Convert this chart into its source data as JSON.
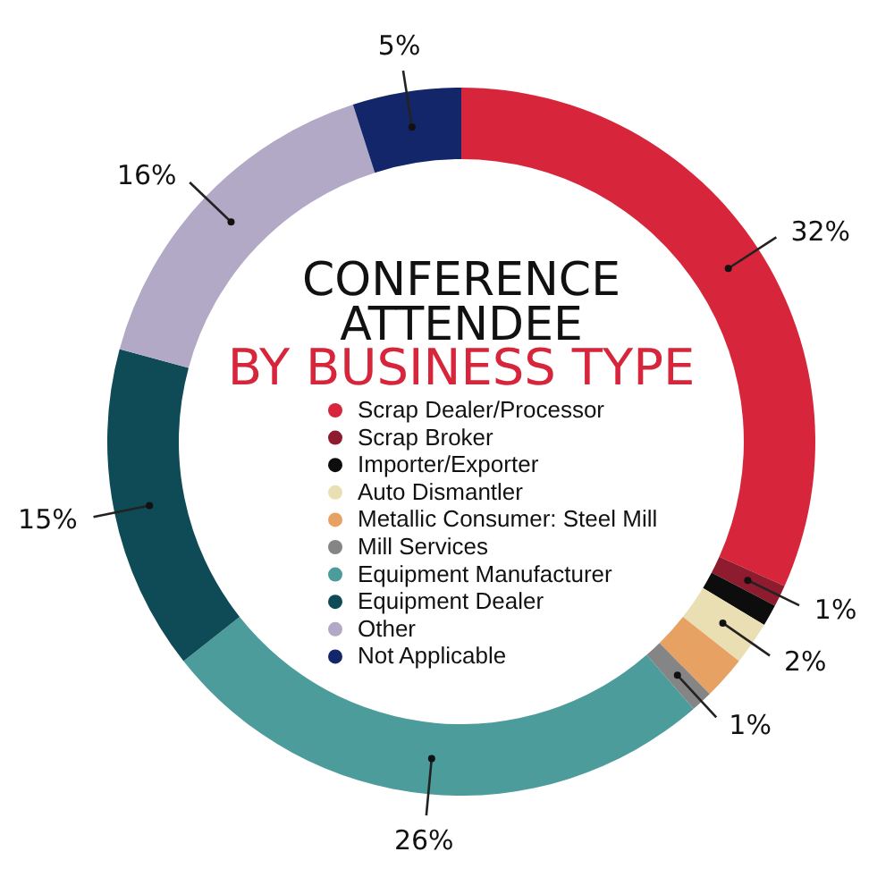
{
  "chart_data": {
    "type": "donut",
    "title": "CONFERENCE ATTENDEE",
    "subtitle": "BY BUSINESS TYPE",
    "categories": [
      "Scrap Dealer/Processor",
      "Scrap Broker",
      "Importer/Exporter",
      "Auto Dismantler",
      "Metallic Consumer: Steel Mill",
      "Mill Services",
      "Equipment Manufacturer",
      "Equipment Dealer",
      "Other",
      "Not Applicable"
    ],
    "values": [
      32,
      1,
      1,
      2,
      2,
      1,
      26,
      15,
      16,
      5
    ],
    "colors": [
      "#d7263b",
      "#8e1b2e",
      "#0d0d0d",
      "#e9dfb3",
      "#e7a263",
      "#858585",
      "#4b9c9b",
      "#0f4b57",
      "#b1a9c5",
      "#13266a"
    ],
    "value_labels": [
      "32%",
      "1%",
      null,
      "2%",
      null,
      "1%",
      "26%",
      "15%",
      "16%",
      "5%"
    ],
    "legend": "center"
  }
}
